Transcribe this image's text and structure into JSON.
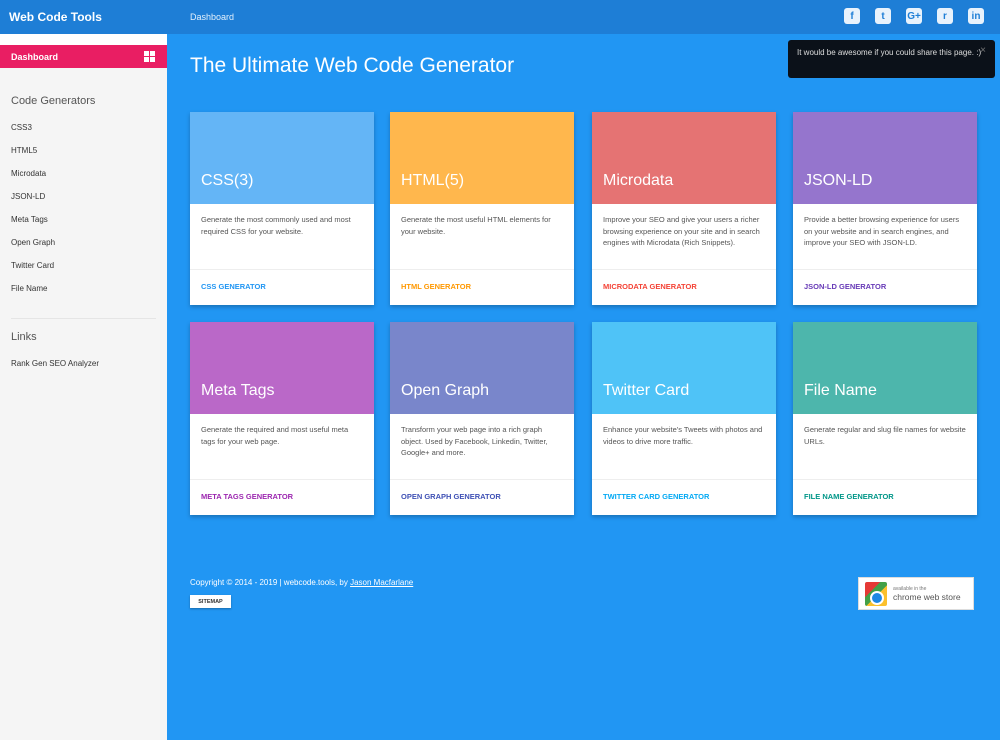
{
  "topbar": {
    "brand": "Web Code Tools",
    "breadcrumb": "Dashboard",
    "social": [
      {
        "icon": "facebook-icon",
        "glyph": "f"
      },
      {
        "icon": "twitter-icon",
        "glyph": "t"
      },
      {
        "icon": "google-plus-icon",
        "glyph": "G+"
      },
      {
        "icon": "reddit-icon",
        "glyph": "r"
      },
      {
        "icon": "linkedin-icon",
        "glyph": "in"
      }
    ]
  },
  "sidebar": {
    "active": "Dashboard",
    "section1": "Code Generators",
    "generators": [
      "CSS3",
      "HTML5",
      "Microdata",
      "JSON-LD",
      "Meta Tags",
      "Open Graph",
      "Twitter Card",
      "File Name"
    ],
    "section2": "Links",
    "links": [
      "Rank Gen SEO Analyzer"
    ]
  },
  "main": {
    "title": "The Ultimate Web Code Generator"
  },
  "toast": {
    "message": "It would be awesome if you could share this page. :)",
    "close": "×"
  },
  "cards": [
    {
      "title": "CSS(3)",
      "desc": "Generate the most commonly used and most required CSS for your website.",
      "link": "CSS GENERATOR",
      "color": "#64b5f6",
      "link_color": "#2196f3"
    },
    {
      "title": "HTML(5)",
      "desc": "Generate the most useful HTML elements for your website.",
      "link": "HTML GENERATOR",
      "color": "#ffb74d",
      "link_color": "#ff9800"
    },
    {
      "title": "Microdata",
      "desc": "Improve your SEO and give your users a richer browsing experience on your site and in search engines with Microdata (Rich Snippets).",
      "link": "MICRODATA GENERATOR",
      "color": "#e57373",
      "link_color": "#f44336"
    },
    {
      "title": "JSON-LD",
      "desc": "Provide a better browsing experience for users on your website and in search engines, and improve your SEO with JSON-LD.",
      "link": "JSON-LD GENERATOR",
      "color": "#9575cd",
      "link_color": "#673ab7"
    },
    {
      "title": "Meta Tags",
      "desc": "Generate the required and most useful meta tags for your web page.",
      "link": "META TAGS GENERATOR",
      "color": "#ba68c8",
      "link_color": "#9c27b0"
    },
    {
      "title": "Open Graph",
      "desc": "Transform your web page into a rich graph object. Used by Facebook, Linkedin, Twitter, Google+ and more.",
      "link": "OPEN GRAPH GENERATOR",
      "color": "#7986cb",
      "link_color": "#3f51b5"
    },
    {
      "title": "Twitter Card",
      "desc": "Enhance your website's Tweets with photos and videos to drive more traffic.",
      "link": "TWITTER CARD GENERATOR",
      "color": "#4fc3f7",
      "link_color": "#03a9f4"
    },
    {
      "title": "File Name",
      "desc": "Generate regular and slug file names for website URLs.",
      "link": "FILE NAME GENERATOR",
      "color": "#4db6ac",
      "link_color": "#009688"
    }
  ],
  "footer": {
    "copyright": "Copyright © 2014 - 2019 | webcode.tools, by ",
    "author": "Jason Macfarlane",
    "sitemap": "SITEMAP",
    "store_line1": "available in the",
    "store_line2": "chrome web store"
  }
}
